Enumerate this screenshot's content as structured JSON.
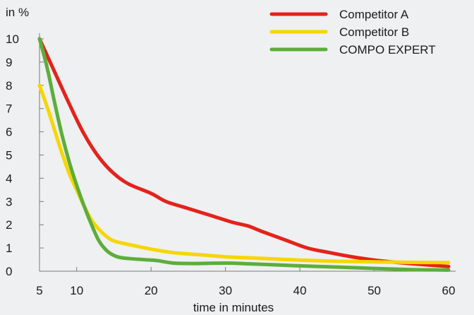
{
  "chart_data": {
    "type": "line",
    "xlabel": "time in minutes",
    "ylabel": "in %",
    "xlim": [
      5,
      60
    ],
    "ylim": [
      0,
      10
    ],
    "x_ticks": [
      5,
      10,
      20,
      30,
      40,
      50,
      60
    ],
    "y_ticks": [
      0,
      1,
      2,
      3,
      4,
      5,
      6,
      7,
      8,
      9,
      10
    ],
    "grid": false,
    "legend_position": "top-right",
    "series": [
      {
        "name": "Competitor A",
        "color": "#e3231b",
        "points": [
          [
            5,
            10
          ],
          [
            7,
            8.6
          ],
          [
            9,
            7.2
          ],
          [
            11,
            5.9
          ],
          [
            13,
            4.9
          ],
          [
            15,
            4.2
          ],
          [
            17,
            3.75
          ],
          [
            20,
            3.35
          ],
          [
            22,
            3.0
          ],
          [
            25,
            2.7
          ],
          [
            28,
            2.4
          ],
          [
            31,
            2.1
          ],
          [
            33,
            1.95
          ],
          [
            35,
            1.7
          ],
          [
            38,
            1.35
          ],
          [
            41,
            1.0
          ],
          [
            44,
            0.8
          ],
          [
            47,
            0.62
          ],
          [
            50,
            0.48
          ],
          [
            53,
            0.38
          ],
          [
            56,
            0.3
          ],
          [
            60,
            0.2
          ]
        ]
      },
      {
        "name": "Competitor B",
        "color": "#f7d600",
        "points": [
          [
            5,
            8
          ],
          [
            6,
            7.1
          ],
          [
            7,
            6.1
          ],
          [
            8,
            5.1
          ],
          [
            9,
            4.2
          ],
          [
            10,
            3.5
          ],
          [
            11,
            2.8
          ],
          [
            12,
            2.2
          ],
          [
            13,
            1.8
          ],
          [
            14,
            1.5
          ],
          [
            15,
            1.3
          ],
          [
            17,
            1.15
          ],
          [
            20,
            0.95
          ],
          [
            23,
            0.8
          ],
          [
            27,
            0.7
          ],
          [
            30,
            0.62
          ],
          [
            35,
            0.55
          ],
          [
            40,
            0.48
          ],
          [
            45,
            0.43
          ],
          [
            50,
            0.4
          ],
          [
            55,
            0.38
          ],
          [
            60,
            0.37
          ]
        ]
      },
      {
        "name": "COMPO EXPERT",
        "color": "#5dad3b",
        "points": [
          [
            5,
            10
          ],
          [
            6,
            8.8
          ],
          [
            7,
            7.3
          ],
          [
            8,
            5.9
          ],
          [
            9,
            4.7
          ],
          [
            10,
            3.7
          ],
          [
            11,
            2.8
          ],
          [
            12,
            2.0
          ],
          [
            13,
            1.3
          ],
          [
            14,
            0.9
          ],
          [
            15,
            0.68
          ],
          [
            16,
            0.58
          ],
          [
            18,
            0.52
          ],
          [
            20,
            0.48
          ],
          [
            21,
            0.45
          ],
          [
            23,
            0.35
          ],
          [
            26,
            0.33
          ],
          [
            30,
            0.35
          ],
          [
            33,
            0.32
          ],
          [
            37,
            0.27
          ],
          [
            41,
            0.22
          ],
          [
            45,
            0.18
          ],
          [
            50,
            0.12
          ],
          [
            55,
            0.07
          ],
          [
            60,
            0.05
          ]
        ]
      }
    ]
  }
}
